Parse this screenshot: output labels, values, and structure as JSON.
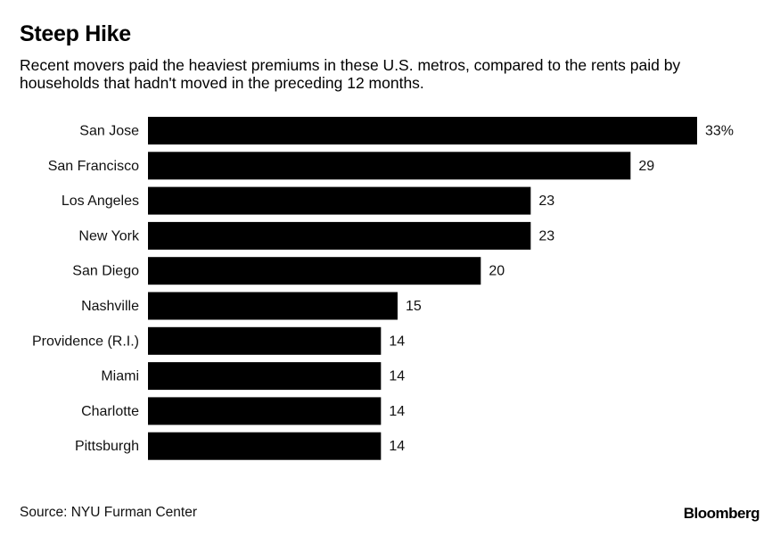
{
  "header": {
    "title": "Steep Hike",
    "subtitle": "Recent movers paid the heaviest premiums in these U.S. metros, compared to the rents paid by households that hadn't moved in the preceding 12 months."
  },
  "footer": {
    "source": "Source: NYU Furman Center",
    "brand": "Bloomberg"
  },
  "chart_data": {
    "type": "bar",
    "orientation": "horizontal",
    "title": "Steep Hike",
    "subtitle": "Recent movers paid the heaviest premiums in these U.S. metros, compared to the rents paid by households that hadn't moved in the preceding 12 months.",
    "categories": [
      "San Jose",
      "San Francisco",
      "Los Angeles",
      "New York",
      "San Diego",
      "Nashville",
      "Providence (R.I.)",
      "Miami",
      "Charlotte",
      "Pittsburgh"
    ],
    "values": [
      33,
      29,
      23,
      23,
      20,
      15,
      14,
      14,
      14,
      14
    ],
    "value_labels": [
      "33%",
      "29",
      "23",
      "23",
      "20",
      "15",
      "14",
      "14",
      "14",
      "14"
    ],
    "unit": "%",
    "xlim": [
      0,
      33
    ],
    "grid": false,
    "legend": "none",
    "bar_color": "#000000"
  }
}
